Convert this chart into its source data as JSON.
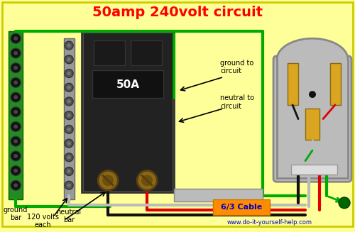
{
  "bg_color": "#FFFF99",
  "title": "50amp 240volt circuit",
  "title_color": "#FF0000",
  "title_fontsize": 14,
  "website": "www.do-it-yourself-help.com",
  "website_color": "#0000CC",
  "cable_label": "6/3 Cable",
  "cable_color": "#FF8C00",
  "cable_label_color": "#0000CC",
  "label_ground_bar": "ground\nbar",
  "label_neutral_bar": "neutral\nbar",
  "label_120v": "120 volts\neach",
  "label_ground_to": "ground to\ncircuit",
  "label_neutral_to": "neutral to\ncircuit",
  "wire_green": "#00AA00",
  "wire_red": "#DD0000",
  "wire_black": "#111111",
  "wire_white": "#BBBBBB",
  "breaker_body": "#222222",
  "breaker_label": "50A",
  "ground_bar_color": "#228B22",
  "neutral_bar_color": "#999999"
}
